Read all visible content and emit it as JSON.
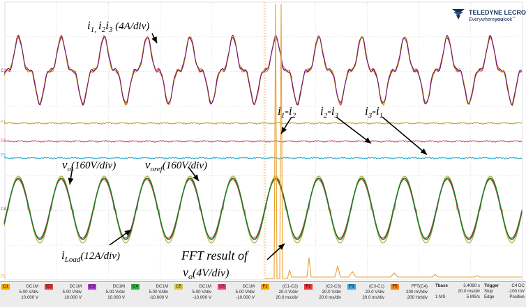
{
  "logo": {
    "brand": "TELEDYNE LECROY",
    "tagline_1": "Everywhere",
    "tagline_2": "you",
    "tagline_3": "look",
    "tm": "™"
  },
  "annotations": {
    "i_sub_1": "i",
    "i_idx_1": "1,",
    "i_sub_2": "i",
    "i_idx_2": "2",
    "i_sub_3": "i",
    "i_idx_3": "3",
    "phase_scale": " (4A/div)",
    "d1a": "i",
    "d1a_idx": "1",
    "d1b": "-i",
    "d1b_idx": "2",
    "d2a": "i",
    "d2a_idx": "2",
    "d2b": "-i",
    "d2b_idx": "3",
    "d3a": "i",
    "d3a_idx": "3",
    "d3b": "-i",
    "d3b_idx": "1",
    "vo": "v",
    "vo_idx": "o",
    "vo_scale": "(160V/div)",
    "voref": "v",
    "voref_idx": "oref",
    "voref_scale": "(160V/div)",
    "iload": "i",
    "iload_idx": "Load",
    "iload_scale": "(12A/div)",
    "fft_line1": "FFT result of",
    "fft_v": "v",
    "fft_v_idx": "o",
    "fft_scale": "(4V/div)"
  },
  "trace_markers": {
    "c1": "C1",
    "f1": "F1",
    "f2": "F2",
    "f3": "F3",
    "c4": "C4",
    "f5": "F5"
  },
  "colors": {
    "c1": "#c8a000",
    "c2": "#d0205a",
    "c3": "#6c1a78",
    "c4": "#1c7a2a",
    "c5": "#b4a438",
    "f1": "#b79a1c",
    "f2": "#c84077",
    "f3": "#1aa3c8",
    "f5": "#e8a030",
    "grid": "#c8c8c8"
  },
  "status_bar": {
    "channels": [
      {
        "tag": "C1",
        "coupling": "DC1M",
        "scale": "5.00 V/div",
        "offset": "10.000 V",
        "color": "#f0a800"
      },
      {
        "tag": "C2",
        "coupling": "DC1M",
        "scale": "5.00 V/div",
        "offset": "10.000 V",
        "color": "#e23c3c"
      },
      {
        "tag": "C3",
        "coupling": "DC1M",
        "scale": "5.00 V/div",
        "offset": "10.000 V",
        "color": "#a83cc8"
      },
      {
        "tag": "C4",
        "coupling": "DC1M",
        "scale": "5.00 V/div",
        "offset": "-10.000 V",
        "color": "#2fb544"
      },
      {
        "tag": "C5",
        "coupling": "DC1M",
        "scale": "5.00 V/div",
        "offset": "-10.000 V",
        "color": "#d7c94a"
      },
      {
        "tag": "C6",
        "coupling": "DC1M",
        "scale": "5.00 V/div",
        "offset": "-10.000 V",
        "color": "#e8468c"
      },
      {
        "tag": "F1",
        "coupling": "(C1-C2)",
        "scale": "20.0 V/div",
        "offset": "20.0 ms/div",
        "color": "#f0a800"
      },
      {
        "tag": "F2",
        "coupling": "(C2-C3)",
        "scale": "20.0 V/div",
        "offset": "20.0 ms/div",
        "color": "#e23c3c"
      },
      {
        "tag": "F3",
        "coupling": "(C3-C1)",
        "scale": "20.0 V/div",
        "offset": "20.0 ms/div",
        "color": "#3fa4dc"
      },
      {
        "tag": "F5",
        "coupling": "FFT(C4)",
        "scale": "200 mV/div",
        "offset": "200 Hz/div",
        "color": "#f08020"
      }
    ],
    "timebase": {
      "label": "Tbase",
      "value": "3.4060 s",
      "scale": "20.0 ms/div",
      "samples": "1 MS",
      "rate": "5 MS/s"
    },
    "trigger": {
      "label": "Trigger",
      "source": "C4 DC",
      "mode": "Stop",
      "level": "-100 mV",
      "type": "Edge",
      "slope": "Positive"
    }
  }
}
